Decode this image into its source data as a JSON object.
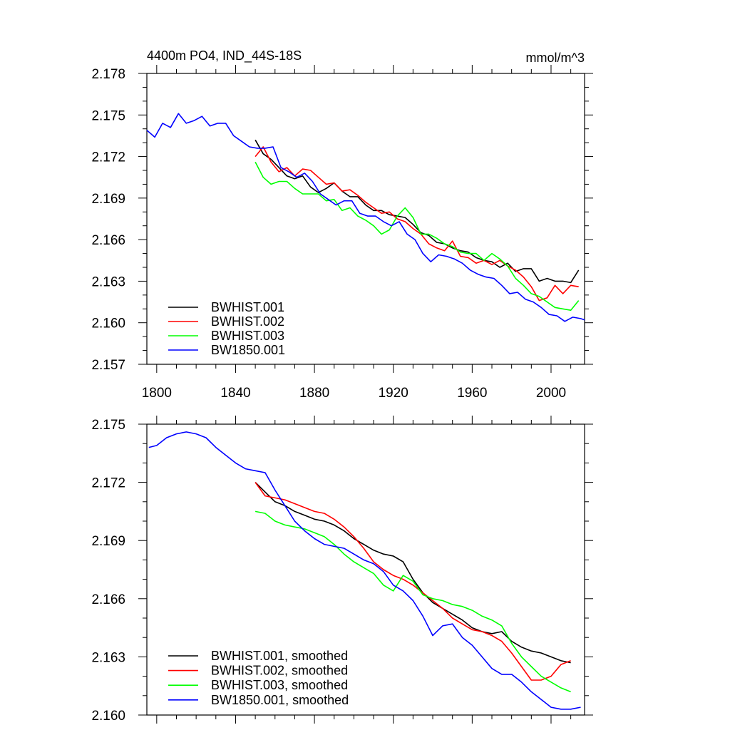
{
  "chart_data": [
    {
      "type": "line",
      "title_left": "4400m PO4, IND_44S-18S",
      "title_right": "mmol/m^3",
      "xlabel": "",
      "ylabel": "",
      "xlim": [
        1795,
        2017
      ],
      "ylim": [
        2.157,
        2.178
      ],
      "xticks": [
        1800,
        1840,
        1880,
        1920,
        1960,
        2000
      ],
      "xtick_labels": [
        "1800",
        "1840",
        "1880",
        "1920",
        "1960",
        "2000"
      ],
      "yticks": [
        2.157,
        2.16,
        2.163,
        2.166,
        2.169,
        2.172,
        2.175,
        2.178
      ],
      "ytick_labels": [
        "2.157",
        "2.160",
        "2.163",
        "2.166",
        "2.169",
        "2.172",
        "2.175",
        "2.178"
      ],
      "legend_position": "bottom-left",
      "series": [
        {
          "name": "BWHIST.001",
          "color": "#000000",
          "x": [
            1850,
            1854,
            1858,
            1862,
            1866,
            1870,
            1874,
            1878,
            1882,
            1886,
            1890,
            1894,
            1898,
            1902,
            1906,
            1910,
            1914,
            1918,
            1922,
            1926,
            1930,
            1934,
            1938,
            1942,
            1946,
            1950,
            1954,
            1958,
            1962,
            1966,
            1970,
            1974,
            1978,
            1982,
            1986,
            1990,
            1994,
            1998,
            2002,
            2006,
            2010,
            2014
          ],
          "y": [
            2.1732,
            2.1722,
            2.1718,
            2.1712,
            2.1706,
            2.1704,
            2.1706,
            2.1698,
            2.1694,
            2.1697,
            2.1701,
            2.1695,
            2.1691,
            2.1691,
            2.1685,
            2.1681,
            2.1681,
            2.1678,
            2.1677,
            2.1676,
            2.1671,
            2.1665,
            2.1663,
            2.1658,
            2.1657,
            2.1654,
            2.1652,
            2.1651,
            2.1647,
            2.1645,
            2.1644,
            2.164,
            2.1643,
            2.1637,
            2.1639,
            2.1639,
            2.163,
            2.1632,
            2.163,
            2.163,
            2.1629,
            2.1638
          ]
        },
        {
          "name": "BWHIST.002",
          "color": "#ff0000",
          "x": [
            1850,
            1854,
            1858,
            1862,
            1866,
            1870,
            1874,
            1878,
            1882,
            1886,
            1890,
            1894,
            1898,
            1902,
            1906,
            1910,
            1914,
            1918,
            1922,
            1926,
            1930,
            1934,
            1938,
            1942,
            1946,
            1950,
            1954,
            1958,
            1962,
            1966,
            1970,
            1974,
            1978,
            1982,
            1986,
            1990,
            1994,
            1998,
            2002,
            2006,
            2010,
            2014
          ],
          "y": [
            2.172,
            2.1727,
            2.1716,
            2.1709,
            2.1712,
            2.1706,
            2.1711,
            2.171,
            2.1705,
            2.17,
            2.1701,
            2.1695,
            2.1696,
            2.1692,
            2.1687,
            2.1683,
            2.1679,
            2.168,
            2.1675,
            2.1673,
            2.1668,
            2.1664,
            2.1657,
            2.1654,
            2.1652,
            2.1659,
            2.1648,
            2.1647,
            2.1643,
            2.1645,
            2.1642,
            2.1645,
            2.1641,
            2.1638,
            2.1633,
            2.1626,
            2.1616,
            2.1618,
            2.1627,
            2.1621,
            2.1627,
            2.1626
          ]
        },
        {
          "name": "BWHIST.003",
          "color": "#00ff00",
          "x": [
            1850,
            1854,
            1858,
            1862,
            1866,
            1870,
            1874,
            1878,
            1882,
            1886,
            1890,
            1894,
            1898,
            1902,
            1906,
            1910,
            1914,
            1918,
            1922,
            1926,
            1930,
            1934,
            1938,
            1942,
            1946,
            1950,
            1954,
            1958,
            1962,
            1966,
            1970,
            1974,
            1978,
            1982,
            1986,
            1990,
            1994,
            1998,
            2002,
            2006,
            2010,
            2014
          ],
          "y": [
            2.1716,
            2.1705,
            2.17,
            2.1702,
            2.1702,
            2.1697,
            2.1693,
            2.1693,
            2.1693,
            2.1688,
            2.1689,
            2.1681,
            2.1683,
            2.1677,
            2.1674,
            2.167,
            2.1664,
            2.1667,
            2.1677,
            2.1683,
            2.1676,
            2.1664,
            2.1664,
            2.1661,
            2.1657,
            2.1655,
            2.1651,
            2.165,
            2.165,
            2.1645,
            2.165,
            2.1646,
            2.1641,
            2.1632,
            2.1627,
            2.1621,
            2.1619,
            2.1615,
            2.1611,
            2.161,
            2.1609,
            2.1616
          ]
        },
        {
          "name": "BW1850.001",
          "color": "#0000ff",
          "x": [
            1795,
            1799,
            1803,
            1807,
            1811,
            1815,
            1819,
            1823,
            1827,
            1831,
            1835,
            1839,
            1843,
            1847,
            1851,
            1855,
            1859,
            1863,
            1867,
            1871,
            1875,
            1879,
            1883,
            1887,
            1891,
            1895,
            1899,
            1903,
            1907,
            1911,
            1915,
            1919,
            1923,
            1927,
            1931,
            1935,
            1939,
            1943,
            1947,
            1951,
            1955,
            1959,
            1963,
            1967,
            1971,
            1975,
            1979,
            1983,
            1987,
            1991,
            1995,
            1999,
            2003,
            2007,
            2011,
            2015,
            2017
          ],
          "y": [
            2.1739,
            2.1734,
            2.1744,
            2.1741,
            2.1751,
            2.1744,
            2.1746,
            2.1749,
            2.1742,
            2.1744,
            2.1744,
            2.1735,
            2.1731,
            2.1727,
            2.1726,
            2.1726,
            2.1727,
            2.1712,
            2.1709,
            2.1705,
            2.1708,
            2.1702,
            2.1693,
            2.1689,
            2.1685,
            2.1688,
            2.1688,
            2.1679,
            2.1677,
            2.1677,
            2.1673,
            2.167,
            2.1673,
            2.1664,
            2.166,
            2.165,
            2.1644,
            2.1649,
            2.1648,
            2.1646,
            2.1643,
            2.1638,
            2.1635,
            2.1633,
            2.1632,
            2.1627,
            2.1621,
            2.1622,
            2.1617,
            2.1615,
            2.1611,
            2.1606,
            2.1605,
            2.1601,
            2.1604,
            2.1603,
            2.1602
          ]
        }
      ]
    },
    {
      "type": "line",
      "xlabel": "",
      "ylabel": "",
      "xlim": [
        1795,
        2017
      ],
      "ylim": [
        2.16,
        2.175
      ],
      "xticks": [
        1800,
        1840,
        1880,
        1920,
        1960,
        2000
      ],
      "yticks": [
        2.16,
        2.163,
        2.166,
        2.169,
        2.172,
        2.175
      ],
      "ytick_labels": [
        "2.160",
        "2.163",
        "2.166",
        "2.169",
        "2.172",
        "2.175"
      ],
      "legend_position": "bottom-left",
      "series": [
        {
          "name": "BWHIST.001, smoothed",
          "color": "#000000",
          "x": [
            1850,
            1855,
            1860,
            1865,
            1870,
            1875,
            1880,
            1885,
            1890,
            1895,
            1900,
            1905,
            1910,
            1915,
            1920,
            1925,
            1930,
            1935,
            1940,
            1945,
            1950,
            1955,
            1960,
            1965,
            1970,
            1975,
            1980,
            1985,
            1990,
            1995,
            2000,
            2005,
            2010
          ],
          "y": [
            2.172,
            2.1715,
            2.171,
            2.1708,
            2.1705,
            2.1703,
            2.1701,
            2.17,
            2.1698,
            2.1695,
            2.1691,
            2.1688,
            2.1685,
            2.1683,
            2.1682,
            2.1679,
            2.167,
            2.1663,
            2.1658,
            2.1655,
            2.1652,
            2.1649,
            2.1645,
            2.1643,
            2.1642,
            2.1643,
            2.1638,
            2.1635,
            2.1633,
            2.1632,
            2.163,
            2.1628,
            2.1627
          ]
        },
        {
          "name": "BWHIST.002, smoothed",
          "color": "#ff0000",
          "x": [
            1850,
            1855,
            1860,
            1865,
            1870,
            1875,
            1880,
            1885,
            1890,
            1895,
            1900,
            1905,
            1910,
            1915,
            1920,
            1925,
            1930,
            1935,
            1940,
            1945,
            1950,
            1955,
            1960,
            1965,
            1970,
            1975,
            1980,
            1985,
            1990,
            1995,
            2000,
            2005,
            2010
          ],
          "y": [
            2.172,
            2.1713,
            2.1712,
            2.1711,
            2.1709,
            2.1707,
            2.1705,
            2.1704,
            2.1701,
            2.1697,
            2.1692,
            2.1686,
            2.1679,
            2.1675,
            2.1672,
            2.167,
            2.1667,
            2.1663,
            2.1659,
            2.1655,
            2.165,
            2.1647,
            2.1644,
            2.1643,
            2.1641,
            2.1638,
            2.1632,
            2.1625,
            2.1618,
            2.1618,
            2.162,
            2.1626,
            2.1628
          ]
        },
        {
          "name": "BWHIST.003, smoothed",
          "color": "#00ff00",
          "x": [
            1850,
            1855,
            1860,
            1865,
            1870,
            1875,
            1880,
            1885,
            1890,
            1895,
            1900,
            1905,
            1910,
            1915,
            1920,
            1925,
            1930,
            1935,
            1940,
            1945,
            1950,
            1955,
            1960,
            1965,
            1970,
            1975,
            1980,
            1985,
            1990,
            1995,
            2000,
            2005,
            2010
          ],
          "y": [
            2.1705,
            2.1704,
            2.17,
            2.1698,
            2.1697,
            2.1696,
            2.1694,
            2.1692,
            2.1688,
            2.1683,
            2.1679,
            2.1676,
            2.1673,
            2.1667,
            2.1664,
            2.1672,
            2.1669,
            2.1662,
            2.166,
            2.1659,
            2.1657,
            2.1656,
            2.1654,
            2.1651,
            2.1649,
            2.1646,
            2.1637,
            2.163,
            2.1625,
            2.162,
            2.1617,
            2.1614,
            2.1612
          ]
        },
        {
          "name": "BW1850.001, smoothed",
          "color": "#0000ff",
          "x": [
            1796,
            1800,
            1805,
            1810,
            1815,
            1820,
            1825,
            1830,
            1835,
            1840,
            1845,
            1850,
            1855,
            1860,
            1865,
            1870,
            1875,
            1880,
            1885,
            1890,
            1895,
            1900,
            1905,
            1910,
            1915,
            1920,
            1925,
            1930,
            1935,
            1940,
            1945,
            1950,
            1955,
            1960,
            1965,
            1970,
            1975,
            1980,
            1985,
            1990,
            1995,
            2000,
            2005,
            2010,
            2015
          ],
          "y": [
            2.1738,
            2.1739,
            2.1743,
            2.1745,
            2.1746,
            2.1745,
            2.1743,
            2.1738,
            2.1734,
            2.173,
            2.1727,
            2.1726,
            2.1725,
            2.1716,
            2.1708,
            2.17,
            2.1695,
            2.1691,
            2.1688,
            2.1687,
            2.1686,
            2.1683,
            2.168,
            2.1678,
            2.1674,
            2.1667,
            2.1664,
            2.1659,
            2.1651,
            2.1641,
            2.1646,
            2.1647,
            2.164,
            2.1636,
            2.163,
            2.1624,
            2.1621,
            2.1621,
            2.1617,
            2.1612,
            2.1608,
            2.1604,
            2.1603,
            2.1603,
            2.1604
          ]
        }
      ]
    }
  ]
}
